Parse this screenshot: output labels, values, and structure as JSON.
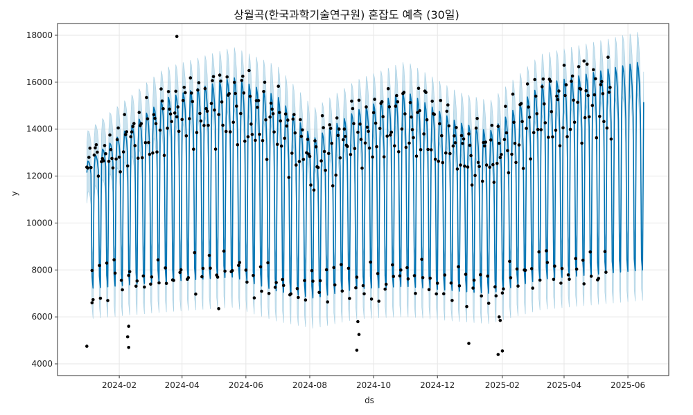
{
  "chart_data": {
    "type": "line",
    "title": "상월곡(한국과학기술연구원) 혼잡도 예측 (30일)",
    "xlabel": "ds",
    "ylabel": "y",
    "x_range": [
      "2023-12-04",
      "2025-07-10"
    ],
    "ylim": [
      3500,
      18500
    ],
    "x_ticks": [
      "2024-02",
      "2024-04",
      "2024-06",
      "2024-08",
      "2024-10",
      "2024-12",
      "2025-02",
      "2025-04",
      "2025-06"
    ],
    "x_tick_dates": [
      "2024-02-01",
      "2024-04-01",
      "2024-06-01",
      "2024-08-01",
      "2024-10-01",
      "2024-12-01",
      "2025-02-01",
      "2025-04-01",
      "2025-06-01"
    ],
    "y_ticks": [
      4000,
      6000,
      8000,
      10000,
      12000,
      14000,
      16000,
      18000
    ],
    "grid": true,
    "legend": "none",
    "colors": {
      "forecast_line": "#0072B2",
      "uncertainty_band": "#a6cfe3",
      "observed_points": "#000000",
      "grid": "#e6e6e6",
      "axis": "#333333"
    },
    "series": [
      {
        "name": "",
        "kind": "forecast",
        "start": "2024-01-01",
        "end": "2025-06-16",
        "weekday_level": 15000,
        "weekend_level": 7400,
        "trend_dates": [
          "2024-01-01",
          "2024-03-15",
          "2024-05-20",
          "2024-07-01",
          "2024-08-05",
          "2024-09-15",
          "2024-11-01",
          "2024-12-20",
          "2025-01-20",
          "2025-03-10",
          "2025-06-16"
        ],
        "weekday_peak": [
          12600,
          15300,
          16200,
          15400,
          13600,
          14800,
          15600,
          14300,
          13900,
          15900,
          16900
        ],
        "weekday_trough": [
          11900,
          13300,
          13600,
          12700,
          11300,
          12600,
          12800,
          12100,
          11600,
          13200,
          14200
        ],
        "weekend_low": [
          7200,
          7500,
          7700,
          7100,
          6800,
          7200,
          7300,
          7100,
          7000,
          7600,
          8000
        ],
        "band_width": 1300
      },
      {
        "name": "",
        "kind": "observed",
        "start": "2024-01-01",
        "end": "2025-05-16",
        "outliers": [
          {
            "x": "2024-01-01",
            "y": 4750
          },
          {
            "x": "2024-01-06",
            "y": 6600
          },
          {
            "x": "2024-02-10",
            "y": 5600
          },
          {
            "x": "2024-02-09",
            "y": 5150
          },
          {
            "x": "2024-02-10",
            "y": 4700
          },
          {
            "x": "2024-03-27",
            "y": 17950
          },
          {
            "x": "2024-05-06",
            "y": 6350
          },
          {
            "x": "2024-09-15",
            "y": 4580
          },
          {
            "x": "2024-09-17",
            "y": 5250
          },
          {
            "x": "2024-09-16",
            "y": 5800
          },
          {
            "x": "2024-12-31",
            "y": 4870
          },
          {
            "x": "2025-01-28",
            "y": 4400
          },
          {
            "x": "2025-01-30",
            "y": 5850
          },
          {
            "x": "2025-01-29",
            "y": 6000
          },
          {
            "x": "2025-02-01",
            "y": 4550
          },
          {
            "x": "2025-04-20",
            "y": 16900
          }
        ]
      }
    ]
  }
}
